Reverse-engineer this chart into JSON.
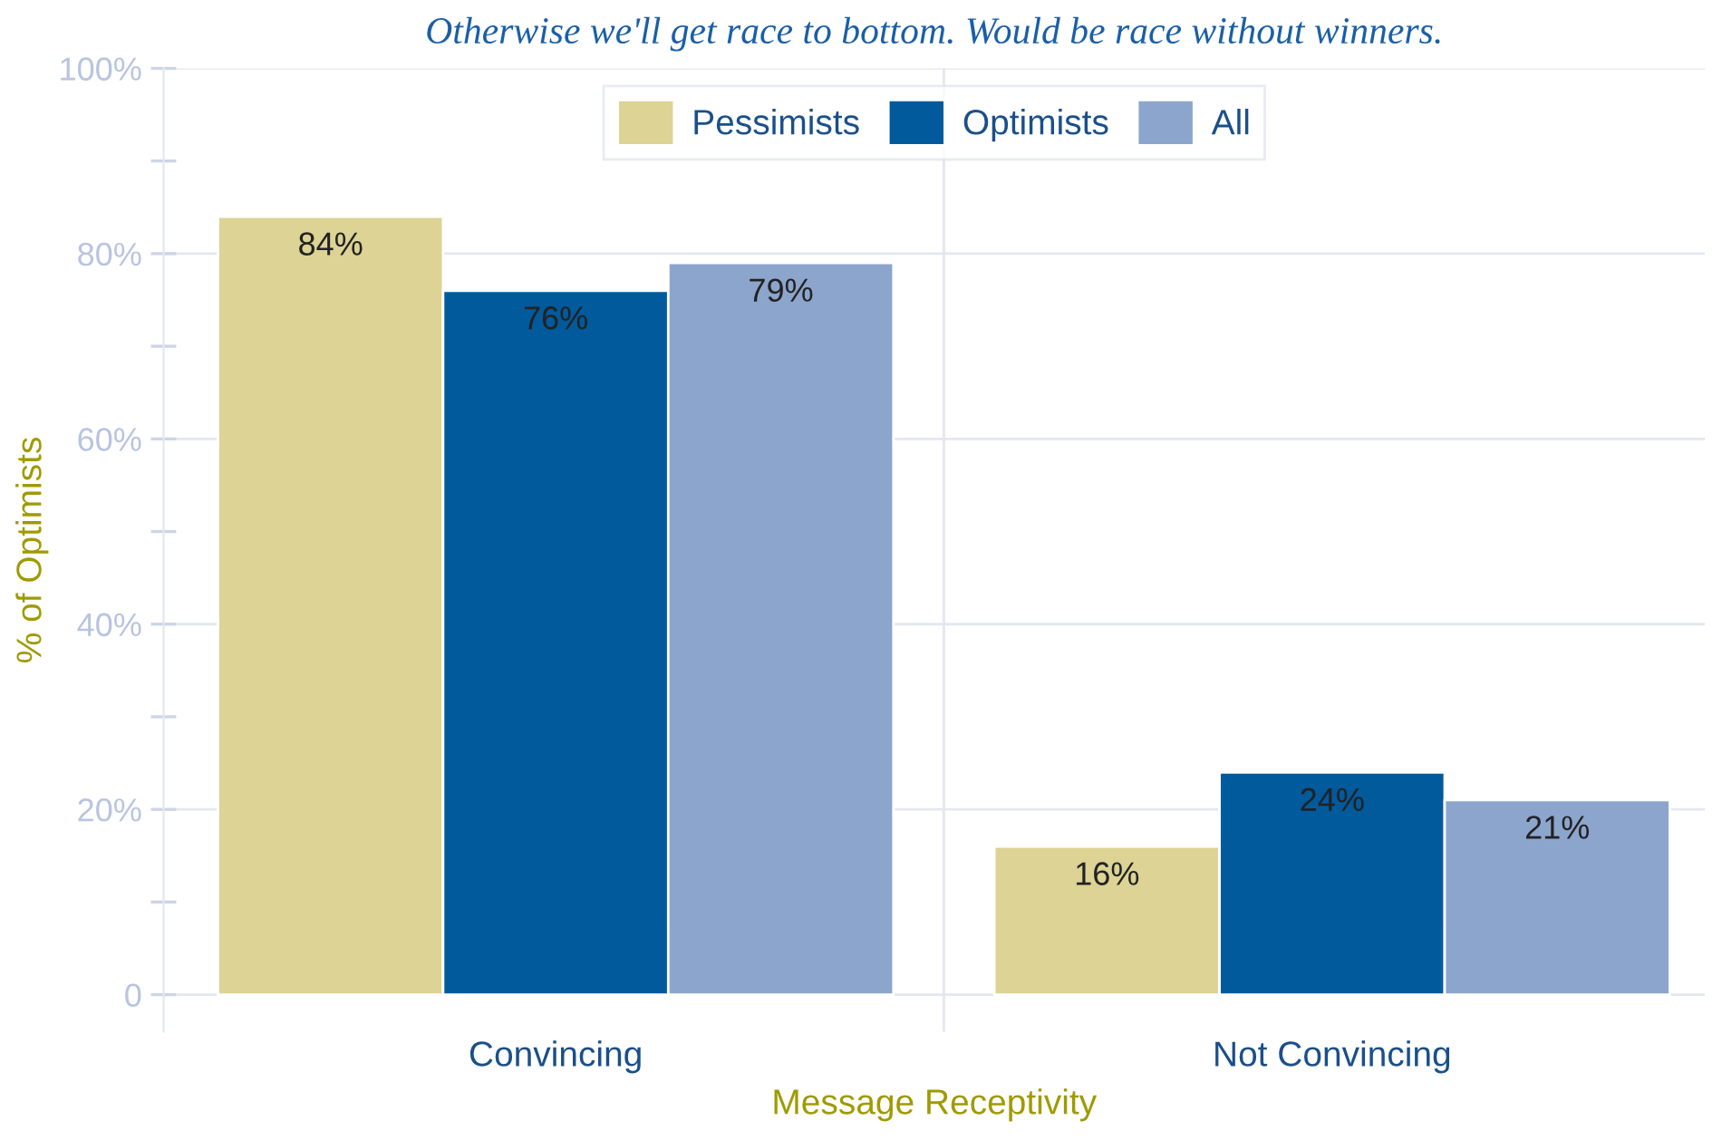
{
  "chart_data": {
    "type": "bar",
    "title": "Otherwise we'll get race to bottom. Would be race without winners.",
    "xlabel": "Message Receptivity",
    "ylabel": "% of Optimists",
    "categories": [
      "Convincing",
      "Not Convincing"
    ],
    "series": [
      {
        "name": "Pessimists",
        "color": "#dcd394",
        "values": [
          84,
          16
        ],
        "value_labels": [
          "84%",
          "16%"
        ]
      },
      {
        "name": "Optimists",
        "color": "#005a9c",
        "values": [
          76,
          24
        ],
        "value_labels": [
          "76%",
          "24%"
        ]
      },
      {
        "name": "All",
        "color": "#8ca5cc",
        "values": [
          79,
          21
        ],
        "value_labels": [
          "79%",
          "21%"
        ]
      }
    ],
    "ylim": [
      -4,
      100
    ],
    "yticks": [
      {
        "value": 0,
        "label": "0"
      },
      {
        "value": 10,
        "label": null
      },
      {
        "value": 20,
        "label": "20%"
      },
      {
        "value": 30,
        "label": null
      },
      {
        "value": 40,
        "label": "40%"
      },
      {
        "value": 50,
        "label": null
      },
      {
        "value": 60,
        "label": "60%"
      },
      {
        "value": 70,
        "label": null
      },
      {
        "value": 80,
        "label": "80%"
      },
      {
        "value": 90,
        "label": null
      },
      {
        "value": 100,
        "label": "100%"
      }
    ],
    "grid": true,
    "legend": "top"
  }
}
